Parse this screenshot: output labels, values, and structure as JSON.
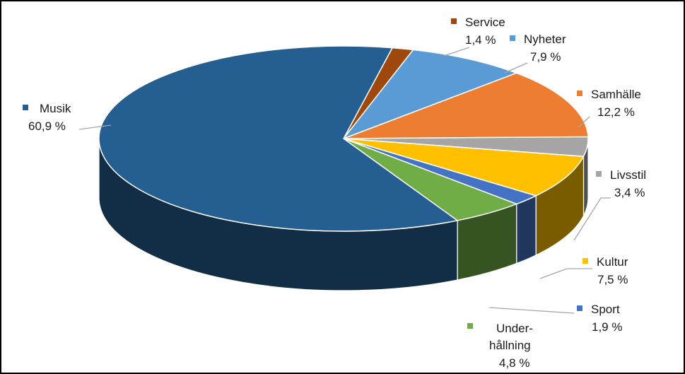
{
  "chart_data": {
    "type": "pie",
    "style": "3d-exploded-none",
    "title": "",
    "legend": "labels-beside-slices",
    "slices": [
      {
        "name": "Service",
        "value_text": "1,4 %",
        "value": 1.4,
        "color": "#9E480E"
      },
      {
        "name": "Nyheter",
        "value_text": "7,9 %",
        "value": 7.9,
        "color": "#5B9BD5"
      },
      {
        "name": "Samhälle",
        "value_text": "12,2 %",
        "value": 12.2,
        "color": "#ED7D31"
      },
      {
        "name": "Livsstil",
        "value_text": "3,4 %",
        "value": 3.4,
        "color": "#A5A5A5"
      },
      {
        "name": "Kultur",
        "value_text": "7,5 %",
        "value": 7.5,
        "color": "#FFC000"
      },
      {
        "name": "Sport",
        "value_text": "1,9 %",
        "value": 1.9,
        "color": "#4472C4"
      },
      {
        "name": "Under-\nhållning",
        "value_text": "4,8 %",
        "value": 4.8,
        "color": "#70AD47"
      },
      {
        "name": "Musik",
        "value_text": "60,9 %",
        "value": 60.9,
        "color": "#255E91"
      }
    ]
  }
}
